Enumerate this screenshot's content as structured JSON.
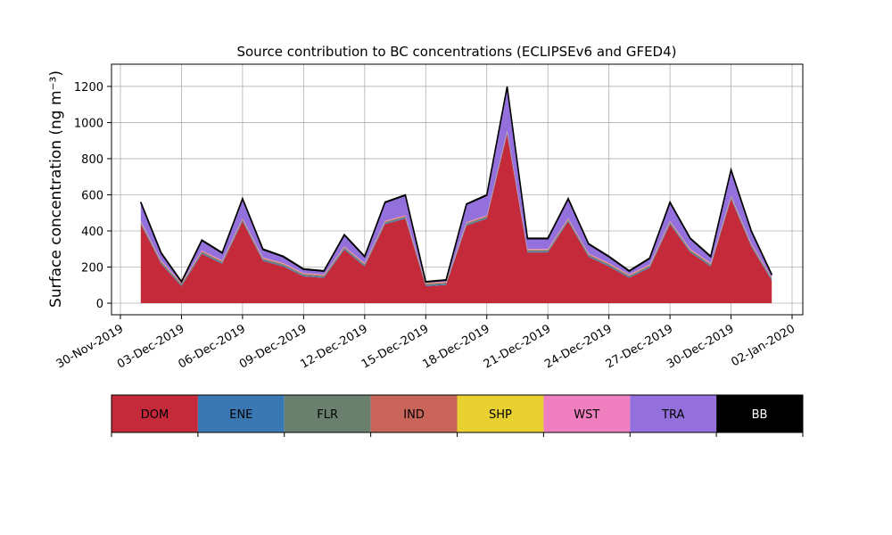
{
  "chart_data": {
    "type": "stacked_area",
    "title": "Source contribution to BC concentrations (ECLIPSEv6 and GFED4)",
    "y_label": "Surface concentration (ng m⁻³)",
    "x": [
      "2019-12-01",
      "2019-12-02",
      "2019-12-03",
      "2019-12-04",
      "2019-12-05",
      "2019-12-06",
      "2019-12-07",
      "2019-12-08",
      "2019-12-09",
      "2019-12-10",
      "2019-12-11",
      "2019-12-12",
      "2019-12-13",
      "2019-12-14",
      "2019-12-15",
      "2019-12-16",
      "2019-12-17",
      "2019-12-18",
      "2019-12-19",
      "2019-12-20",
      "2019-12-21",
      "2019-12-22",
      "2019-12-23",
      "2019-12-24",
      "2019-12-25",
      "2019-12-26",
      "2019-12-27",
      "2019-12-28",
      "2019-12-29",
      "2019-12-30",
      "2019-12-31",
      "2020-01-01"
    ],
    "series": [
      {
        "name": "DOM",
        "color": "#c52a3a",
        "values": [
          437,
          218,
          94,
          273,
          218,
          452,
          234,
          203,
          148,
          140,
          296,
          203,
          437,
          468,
          94,
          101,
          429,
          468,
          936,
          281,
          281,
          452,
          257,
          203,
          140,
          195,
          437,
          281,
          203,
          577,
          312,
          125
        ]
      },
      {
        "name": "ENE",
        "color": "#3a78b3",
        "values": [
          5,
          5,
          5,
          5,
          5,
          5,
          5,
          5,
          5,
          5,
          5,
          5,
          5,
          5,
          5,
          5,
          5,
          5,
          5,
          5,
          5,
          5,
          5,
          5,
          5,
          5,
          5,
          5,
          5,
          5,
          5,
          5
        ]
      },
      {
        "name": "FLR",
        "color": "#6b7f6f",
        "values": [
          6,
          6,
          6,
          6,
          6,
          6,
          6,
          6,
          6,
          6,
          6,
          6,
          6,
          6,
          6,
          6,
          6,
          6,
          6,
          6,
          6,
          6,
          6,
          6,
          6,
          6,
          6,
          6,
          6,
          6,
          6,
          6
        ]
      },
      {
        "name": "IND",
        "color": "#c8645a",
        "values": [
          4,
          4,
          4,
          4,
          4,
          4,
          4,
          4,
          4,
          4,
          4,
          4,
          4,
          4,
          4,
          4,
          4,
          4,
          4,
          4,
          4,
          4,
          4,
          4,
          4,
          4,
          4,
          4,
          4,
          4,
          4,
          4
        ]
      },
      {
        "name": "SHP",
        "color": "#e8d030",
        "values": [
          1,
          1,
          1,
          1,
          1,
          1,
          1,
          1,
          1,
          1,
          1,
          1,
          1,
          1,
          1,
          1,
          1,
          1,
          1,
          1,
          1,
          1,
          1,
          1,
          1,
          1,
          1,
          1,
          1,
          1,
          1,
          1
        ]
      },
      {
        "name": "WST",
        "color": "#f07fbf",
        "values": [
          3,
          3,
          3,
          3,
          3,
          3,
          3,
          3,
          3,
          3,
          3,
          3,
          3,
          3,
          3,
          3,
          3,
          3,
          3,
          3,
          3,
          3,
          3,
          3,
          3,
          3,
          3,
          3,
          3,
          3,
          3,
          3
        ]
      },
      {
        "name": "TRA",
        "color": "#9370db",
        "values": [
          101,
          40,
          4,
          55,
          40,
          106,
          44,
          35,
          20,
          18,
          62,
          35,
          101,
          110,
          4,
          7,
          99,
          110,
          242,
          57,
          57,
          106,
          51,
          35,
          18,
          33,
          101,
          57,
          35,
          141,
          66,
          13
        ]
      },
      {
        "name": "BB",
        "color": "#000000",
        "values": [
          3,
          3,
          3,
          3,
          3,
          3,
          3,
          3,
          3,
          3,
          3,
          3,
          3,
          3,
          3,
          3,
          3,
          3,
          3,
          3,
          3,
          3,
          3,
          3,
          3,
          3,
          3,
          3,
          3,
          3,
          3,
          3
        ]
      }
    ],
    "xlim": [
      "2019-11-30",
      "2020-01-02"
    ],
    "xticks": [
      {
        "value": "2019-11-30",
        "label": "30-Nov-2019"
      },
      {
        "value": "2019-12-03",
        "label": "03-Dec-2019"
      },
      {
        "value": "2019-12-06",
        "label": "06-Dec-2019"
      },
      {
        "value": "2019-12-09",
        "label": "09-Dec-2019"
      },
      {
        "value": "2019-12-12",
        "label": "12-Dec-2019"
      },
      {
        "value": "2019-12-15",
        "label": "15-Dec-2019"
      },
      {
        "value": "2019-12-18",
        "label": "18-Dec-2019"
      },
      {
        "value": "2019-12-21",
        "label": "21-Dec-2019"
      },
      {
        "value": "2019-12-24",
        "label": "24-Dec-2019"
      },
      {
        "value": "2019-12-27",
        "label": "27-Dec-2019"
      },
      {
        "value": "2019-12-30",
        "label": "30-Dec-2019"
      },
      {
        "value": "2020-01-02",
        "label": "02-Jan-2020"
      }
    ],
    "ylim": [
      -64,
      1323
    ],
    "yticks": [
      0,
      200,
      400,
      600,
      800,
      1000,
      1200
    ],
    "grid": true
  }
}
